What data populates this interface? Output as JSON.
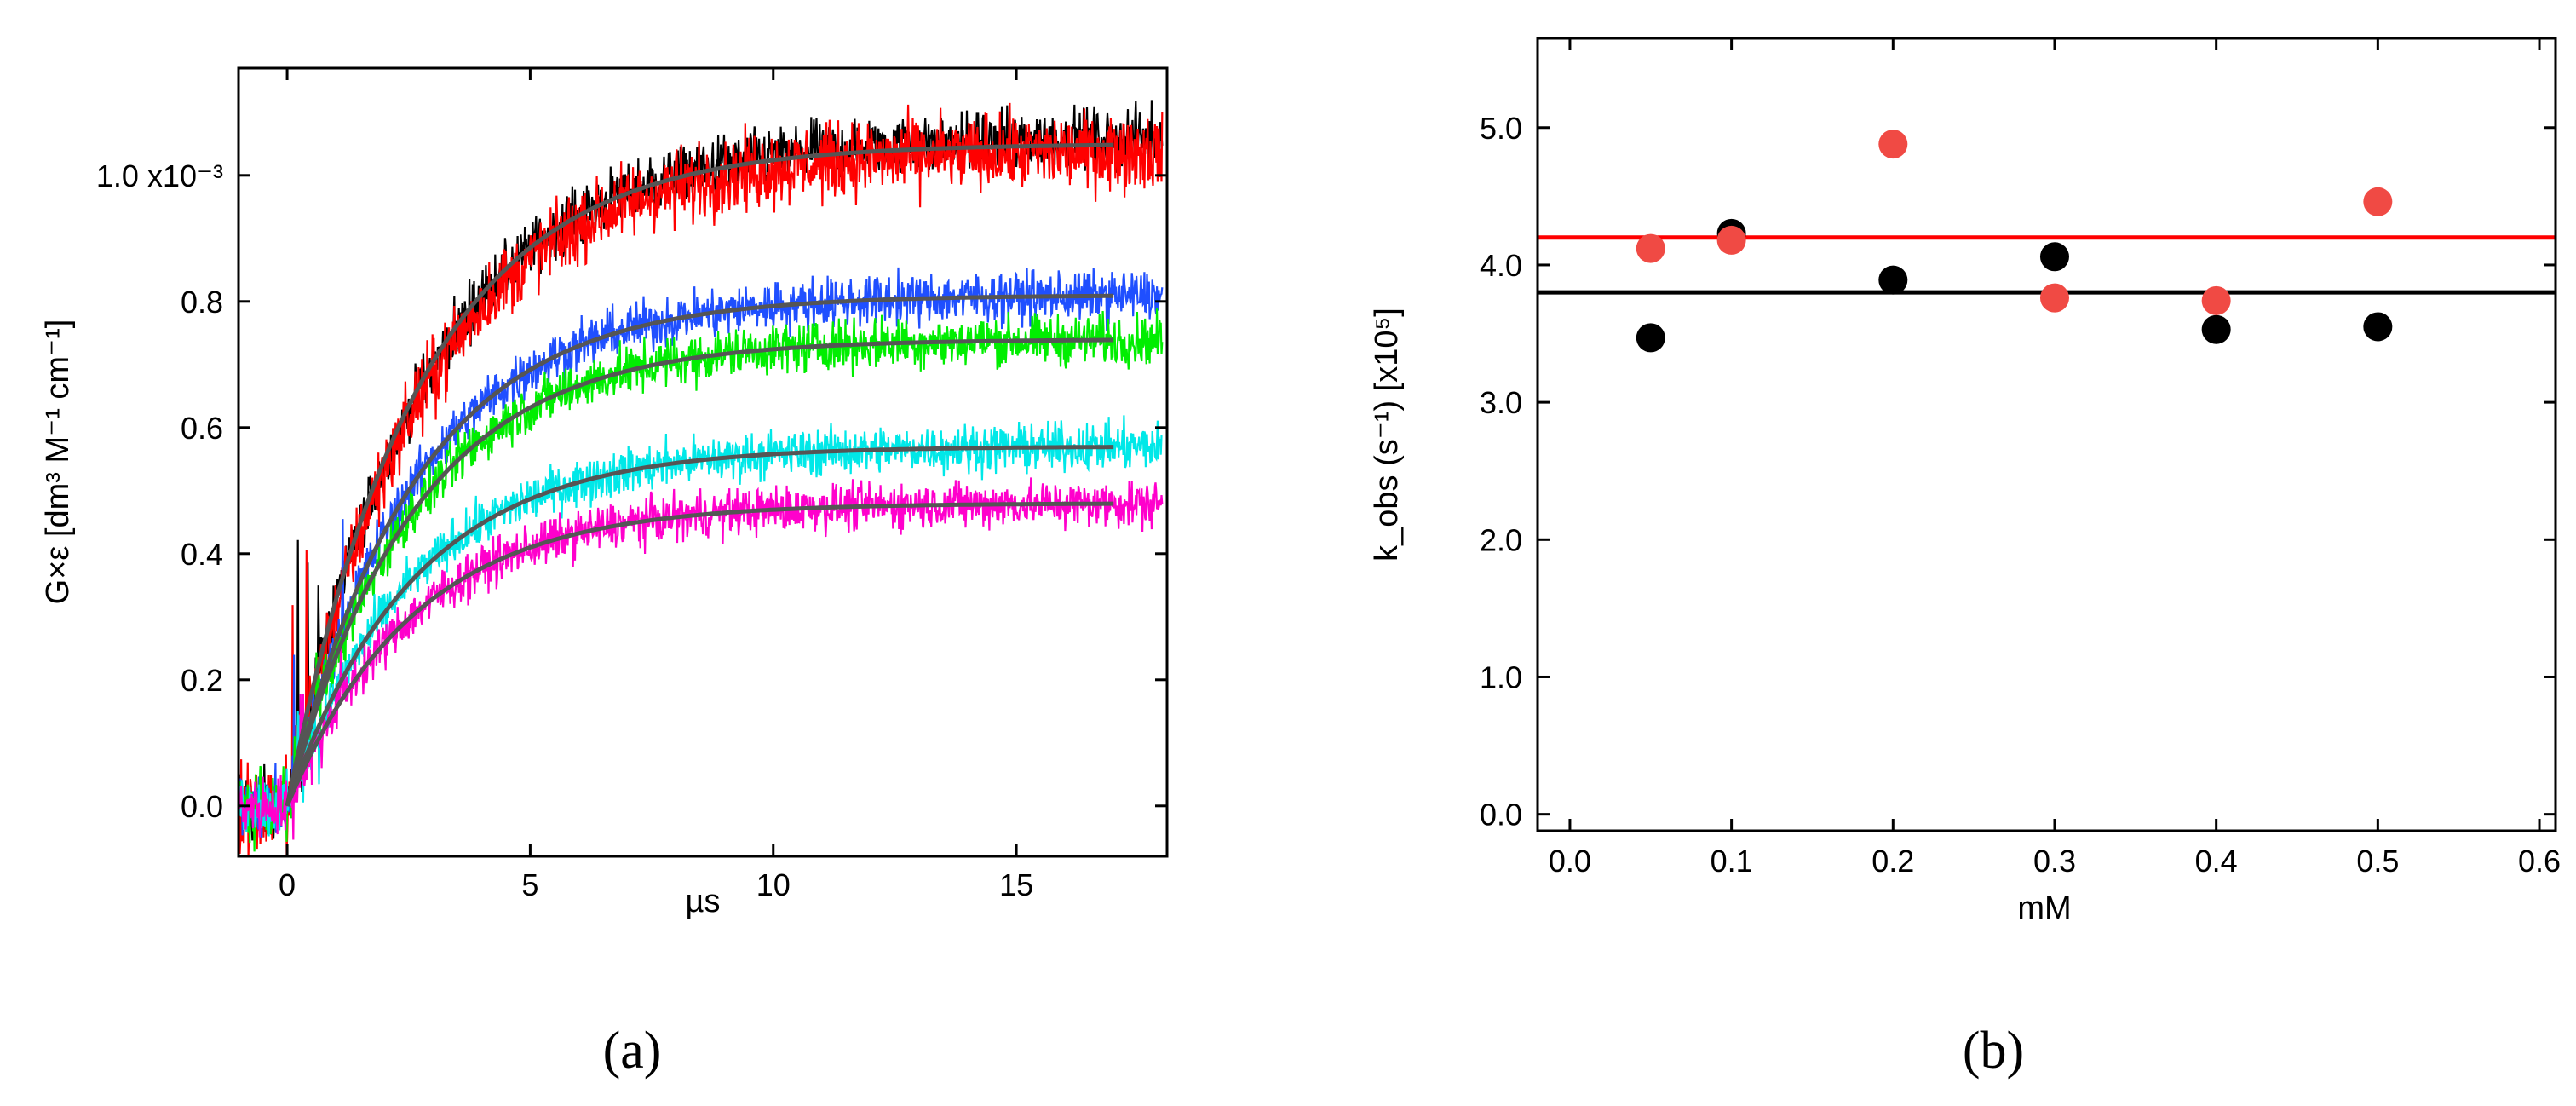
{
  "chart_data": [
    {
      "panel": "a",
      "type": "line",
      "panel_label": "(a)",
      "xlabel": "µs",
      "ylabel": "G×ε [dm³ M⁻¹ cm⁻¹]",
      "xlim": [
        -1,
        18.1
      ],
      "ylim": [
        -8e-05,
        0.00117
      ],
      "xticks": [
        0,
        5,
        10,
        15
      ],
      "xtick_labels": [
        "0",
        "5",
        "10",
        "15"
      ],
      "yticks": [
        0,
        0.0002,
        0.0004,
        0.0006,
        0.0008,
        0.001
      ],
      "ytick_labels": [
        "0.0",
        "0.2",
        "0.4",
        "0.6",
        "0.8",
        "1.0 x10⁻³"
      ],
      "grid": false,
      "series": [
        {
          "color": "#000000",
          "plateau": 0.00106,
          "tau": 2.8,
          "noise": 3.5e-05
        },
        {
          "color": "#ff0000",
          "plateau": 0.00104,
          "tau": 2.8,
          "noise": 4.5e-05
        },
        {
          "color": "#1f4fff",
          "plateau": 0.00081,
          "tau": 2.6,
          "noise": 3e-05
        },
        {
          "color": "#00ee00",
          "plateau": 0.00074,
          "tau": 2.6,
          "noise": 3e-05
        },
        {
          "color": "#00e8e8",
          "plateau": 0.00057,
          "tau": 2.6,
          "noise": 2.8e-05
        },
        {
          "color": "#ff00cc",
          "plateau": 0.00048,
          "tau": 2.6,
          "noise": 2.8e-05
        }
      ],
      "fits": [
        {
          "color": "#555555",
          "plateau": 0.00105,
          "tau": 2.7,
          "x": [
            0,
            17
          ]
        },
        {
          "color": "#555555",
          "plateau": 0.00081,
          "tau": 2.6,
          "x": [
            0,
            17
          ]
        },
        {
          "color": "#555555",
          "plateau": 0.00074,
          "tau": 2.6,
          "x": [
            0,
            17
          ]
        },
        {
          "color": "#555555",
          "plateau": 0.00057,
          "tau": 2.6,
          "x": [
            0,
            17
          ]
        },
        {
          "color": "#555555",
          "plateau": 0.00048,
          "tau": 2.6,
          "x": [
            0,
            17
          ]
        }
      ]
    },
    {
      "panel": "b",
      "type": "scatter",
      "panel_label": "(b)",
      "xlabel": "mM",
      "ylabel": "k_obs (s⁻¹) [x10⁵]",
      "xlim": [
        -0.02,
        0.61
      ],
      "ylim": [
        -0.12,
        5.65
      ],
      "xticks": [
        0,
        0.1,
        0.2,
        0.3,
        0.4,
        0.5,
        0.6
      ],
      "xtick_labels": [
        "0.0",
        "0.1",
        "0.2",
        "0.3",
        "0.4",
        "0.5",
        "0.6"
      ],
      "yticks": [
        0,
        1,
        2,
        3,
        4,
        5
      ],
      "ytick_labels": [
        "0.0",
        "1.0",
        "2.0",
        "3.0",
        "4.0",
        "5.0"
      ],
      "grid": false,
      "series": [
        {
          "color": "#000000",
          "x": [
            0.05,
            0.1,
            0.2,
            0.3,
            0.4,
            0.5
          ],
          "y": [
            3.47,
            4.23,
            3.89,
            4.06,
            3.53,
            3.55
          ]
        },
        {
          "color": "#f04a44",
          "x": [
            0.05,
            0.1,
            0.2,
            0.3,
            0.4,
            0.5
          ],
          "y": [
            4.12,
            4.18,
            4.88,
            3.76,
            3.74,
            4.46
          ]
        }
      ],
      "hlines": [
        {
          "color": "#000000",
          "y": 3.8
        },
        {
          "color": "#ff0000",
          "y": 4.2
        }
      ]
    }
  ]
}
